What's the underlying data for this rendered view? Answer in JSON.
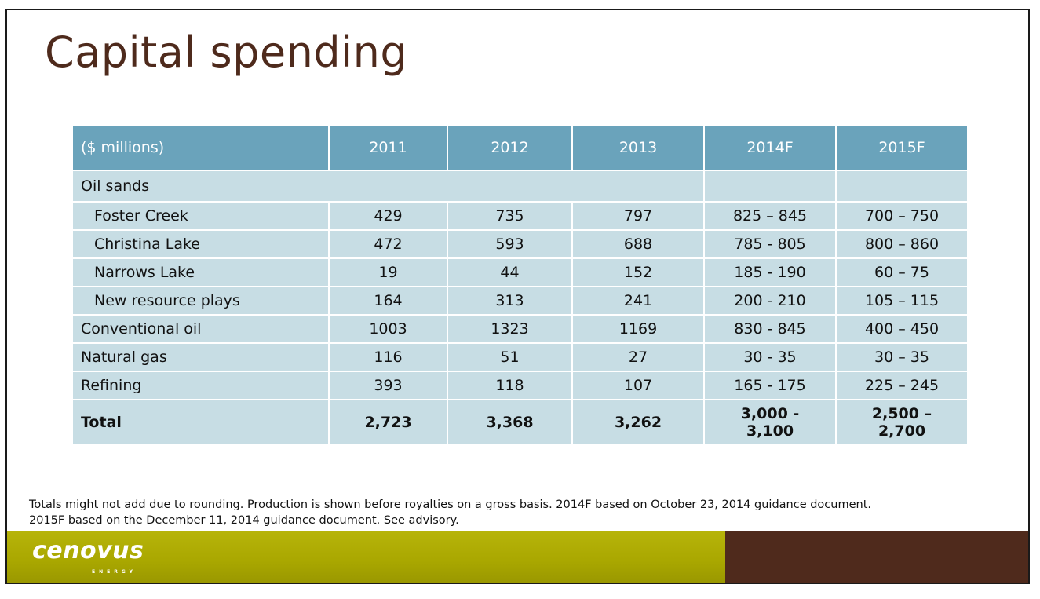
{
  "title": "Capital spending",
  "table": {
    "headers": [
      "($ millions)",
      "2011",
      "2012",
      "2013",
      "2014F",
      "2015F"
    ],
    "section_label": "Oil sands",
    "sub_rows": [
      {
        "label": "Foster Creek",
        "values": [
          "429",
          "735",
          "797",
          "825 – 845",
          "700 – 750"
        ]
      },
      {
        "label": "Christina Lake",
        "values": [
          "472",
          "593",
          "688",
          "785 - 805",
          "800 – 860"
        ]
      },
      {
        "label": "Narrows Lake",
        "values": [
          "19",
          "44",
          "152",
          "185 - 190",
          "60 – 75"
        ]
      },
      {
        "label": "New resource plays",
        "values": [
          "164",
          "313",
          "241",
          "200 - 210",
          "105 – 115"
        ]
      }
    ],
    "rows": [
      {
        "label": "Conventional oil",
        "values": [
          "1003",
          "1323",
          "1169",
          "830 - 845",
          "400 – 450"
        ]
      },
      {
        "label": "Natural gas",
        "values": [
          "116",
          "51",
          "27",
          "30 - 35",
          "30 – 35"
        ]
      },
      {
        "label": "Refining",
        "values": [
          "393",
          "118",
          "107",
          "165 - 175",
          "225 – 245"
        ]
      }
    ],
    "total": {
      "label": "Total",
      "values": [
        "2,723",
        "3,368",
        "3,262"
      ],
      "v2014_line1": "3,000 -",
      "v2014_line2": "3,100",
      "v2015_line1": "2,500 –",
      "v2015_line2": "2,700"
    }
  },
  "footnote": {
    "line1": "Totals might not add due to rounding. Production is shown before royalties on a gross basis. 2014F based on October 23, 2014 guidance document.",
    "line2": "2015F based on the December 11, 2014 guidance document. See advisory."
  },
  "logo": {
    "wordmark": "cenovus",
    "tagline": "ENERGY"
  },
  "colors": {
    "title": "#4e2a1c",
    "header_bg": "#6aa3bb",
    "cell_bg": "#c7dde4",
    "footer_green": "#a9a700",
    "footer_brown": "#4f2a1c"
  }
}
